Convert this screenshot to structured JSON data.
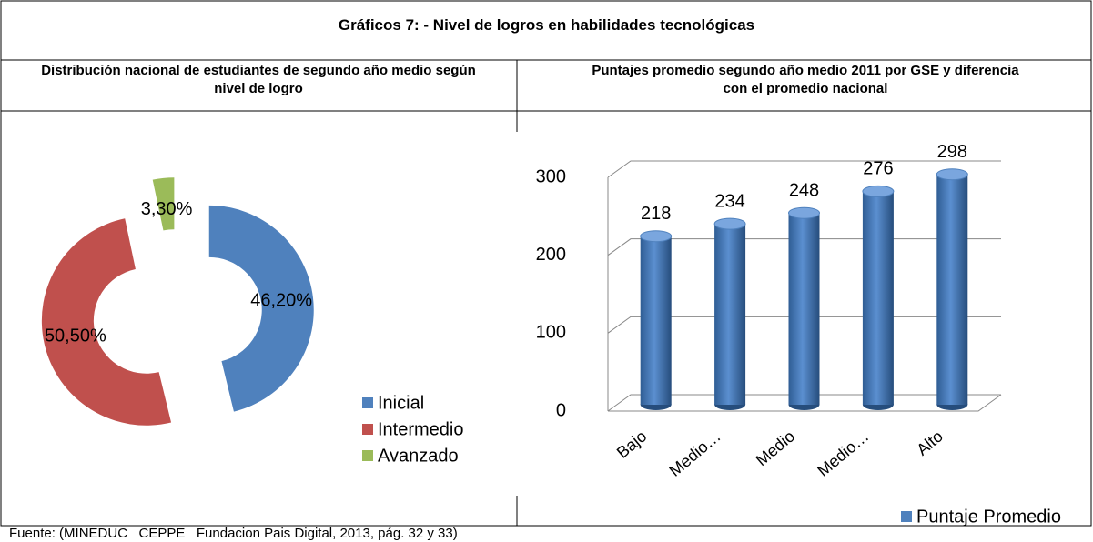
{
  "title": "Gráficos 7: - Nivel de logros en habilidades tecnológicas",
  "chart_data": [
    {
      "type": "pie",
      "title": "Distribución nacional de estudiantes de segundo año medio según nivel de logro",
      "categories": [
        "Inicial",
        "Intermedio",
        "Avanzado"
      ],
      "values": [
        46.2,
        50.5,
        3.3
      ],
      "value_labels": [
        "46,20%",
        "50,50%",
        "3,30%"
      ],
      "colors": [
        "#4f81bd",
        "#c0504d",
        "#9bbb59"
      ],
      "donut": true,
      "exploded": true,
      "legend": "right"
    },
    {
      "type": "bar",
      "title": "Puntajes promedio segundo año medio 2011 por GSE y diferencia con el promedio nacional",
      "categories": [
        "Bajo",
        "Medio…",
        "Medio",
        "Medio…",
        "Alto"
      ],
      "series": [
        {
          "name": "Puntaje Promedio",
          "color": "#4f81bd",
          "values": [
            218,
            234,
            248,
            276,
            298
          ]
        }
      ],
      "ylim": [
        0,
        300
      ],
      "yticks": [
        0,
        100,
        200,
        300
      ],
      "grid": true,
      "legend": "bottom-right",
      "style": "3d-cylinder"
    }
  ],
  "source": "Fuente: (MINEDUC   CEPPE   Fundacion Pais Digital, 2013, pág. 32 y 33)"
}
